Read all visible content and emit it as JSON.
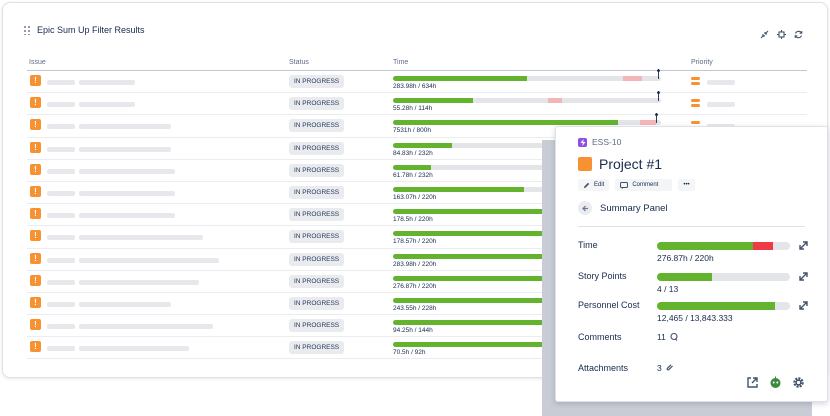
{
  "gadget": {
    "title": "Epic Sum Up Filter Results",
    "columns": {
      "issue": "Issue",
      "status": "Status",
      "time": "Time",
      "priority": "Priority"
    }
  },
  "rows": [
    {
      "status": "IN PROGRESS",
      "time": "283.98h / 634h",
      "progress": 0.5,
      "pink": [
        0.86,
        0.93
      ],
      "arrow": 0.99,
      "ph2": 56
    },
    {
      "status": "IN PROGRESS",
      "time": "55.28h / 114h",
      "progress": 0.3,
      "pink": [
        0.58,
        0.63
      ],
      "arrow": 0.99,
      "ph2": 56
    },
    {
      "status": "IN PROGRESS",
      "time": "7531h / 800h",
      "progress": 0.84,
      "pink": [
        0.92,
        0.98
      ],
      "arrow": 0.98,
      "ph2": 92
    },
    {
      "status": "IN PROGRESS",
      "time": "84.83h / 232h",
      "progress": 0.22,
      "ph2": 92
    },
    {
      "status": "IN PROGRESS",
      "time": "61.78h / 232h",
      "progress": 0.14,
      "ph2": 96
    },
    {
      "status": "IN PROGRESS",
      "time": "163.07h / 220h",
      "progress": 0.49,
      "ph2": 96
    },
    {
      "status": "IN PROGRESS",
      "time": "178.5h / 220h",
      "progress": 0.6,
      "ph2": 96
    },
    {
      "status": "IN PROGRESS",
      "time": "178.57h / 220h",
      "progress": 0.6,
      "ph2": 124
    },
    {
      "status": "IN PROGRESS",
      "time": "283.98h / 220h",
      "progress": 0.6,
      "ph2": 140
    },
    {
      "status": "IN PROGRESS",
      "time": "276.87h / 220h",
      "progress": 0.6,
      "ph2": 120
    },
    {
      "status": "IN PROGRESS",
      "time": "243.55h / 228h",
      "progress": 0.6,
      "ph2": 92
    },
    {
      "status": "IN PROGRESS",
      "time": "94.25h / 144h",
      "progress": 0.6,
      "ph2": 134
    },
    {
      "status": "IN PROGRESS",
      "time": "70.5h / 92h",
      "progress": 0.6,
      "ph2": 110
    }
  ],
  "panel": {
    "issue_key": "ESS-10",
    "title": "Project #1",
    "edit_label": "Edit",
    "comment_label": "Comment",
    "more_label": "•••",
    "summary_label": "Summary Panel",
    "metrics": {
      "time": {
        "label": "Time",
        "value": "276.87h / 220h",
        "progress": 0.72,
        "over": 0.15
      },
      "story_points": {
        "label": "Story Points",
        "value": "4 / 13",
        "progress": 0.41
      },
      "personnel_cost": {
        "label": "Personnel Cost",
        "value": "12,465 / 13,843.333",
        "progress": 0.89
      }
    },
    "comments": {
      "label": "Comments",
      "value": "11"
    },
    "attachments": {
      "label": "Attachments",
      "value": "3"
    }
  },
  "colors": {
    "accent_green": "#63b32e",
    "over_red": "#ef3b46",
    "priority_orange": "#f79233",
    "key_purple": "#904ee2"
  }
}
